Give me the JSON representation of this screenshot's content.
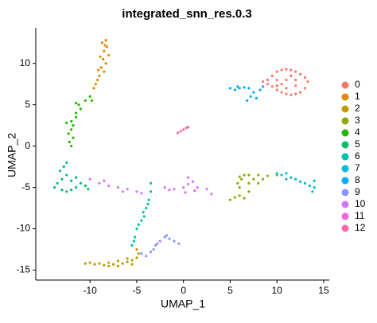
{
  "chart_data": {
    "type": "scatter",
    "title": "integrated_snn_res.0.3",
    "x_label": "UMAP_1",
    "y_label": "UMAP_2",
    "xlim": [
      -15.8,
      15.6
    ],
    "ylim": [
      -16.2,
      14.3
    ],
    "xticks": [
      -10,
      -5,
      0,
      5,
      10,
      15
    ],
    "yticks": [
      -15,
      -10,
      -5,
      0,
      5,
      10
    ],
    "legend": "right",
    "series": [
      {
        "name": "0",
        "color": "#F8766D",
        "x": [
          9,
          9.5,
          10,
          10.5,
          11,
          11.5,
          12,
          12.5,
          13,
          13.3,
          13,
          12.5,
          12,
          11.5,
          11,
          10.5,
          10,
          9.5,
          9,
          10,
          11,
          12,
          11,
          12,
          10.5,
          11.5,
          8.5,
          10
        ],
        "y": [
          8,
          8.5,
          9,
          9.2,
          9.3,
          9.2,
          9,
          8.7,
          8.3,
          7.8,
          7,
          6.5,
          6.3,
          6.2,
          6.3,
          6.5,
          6.8,
          7.2,
          7.5,
          8,
          8,
          8,
          7,
          7.3,
          7.5,
          8.5,
          7.8,
          7.3
        ]
      },
      {
        "name": "1",
        "color": "#E18A00",
        "x": [
          -8.3,
          -8.7,
          -8.2,
          -8.5,
          -8,
          -8.6,
          -8.3,
          -8.8,
          -8.5,
          -9,
          -9.2,
          -9.4,
          -9.6,
          -8.4,
          -8.9,
          -9.1
        ],
        "y": [
          12.8,
          12.5,
          12,
          11.5,
          11,
          10.5,
          10,
          9.5,
          9,
          8.5,
          8,
          7.5,
          7,
          12.2,
          10.8,
          9.2
        ]
      },
      {
        "name": "2",
        "color": "#BE9C00",
        "x": [
          -10.5,
          -10,
          -9.5,
          -9,
          -8.5,
          -8,
          -7.5,
          -7,
          -6.5,
          -6,
          -5.5,
          -5,
          -4.8,
          -5,
          -6,
          -7,
          -8,
          -5.5
        ],
        "y": [
          -14.2,
          -14.1,
          -14.3,
          -14.2,
          -14.4,
          -14.5,
          -14.3,
          -14.5,
          -14.2,
          -14,
          -13.8,
          -13.5,
          -13,
          -12.5,
          -13.6,
          -13.9,
          -14.1,
          -14.3
        ]
      },
      {
        "name": "3",
        "color": "#8CAB00",
        "x": [
          5,
          5.5,
          6,
          6,
          5.8,
          6,
          6.5,
          7,
          8,
          9,
          10,
          7,
          8,
          7,
          6.5,
          8.5,
          6.2,
          7.5
        ],
        "y": [
          -6.5,
          -6.2,
          -6,
          -5,
          -4.5,
          -3.7,
          -3.5,
          -3.5,
          -3.5,
          -3.6,
          -3.5,
          -4.5,
          -4.5,
          -5.5,
          -6.3,
          -4,
          -4,
          -4
        ]
      },
      {
        "name": "4",
        "color": "#24B700",
        "x": [
          -12,
          -12.2,
          -11.8,
          -12.3,
          -12,
          -11.8,
          -12,
          -11.5,
          -11.5,
          -11,
          -11.2,
          -10.5,
          -10,
          -9.8,
          -11.5,
          -12.5
        ],
        "y": [
          0,
          0.5,
          1,
          1.5,
          2,
          2.5,
          3,
          3.5,
          4,
          4.5,
          5,
          5.5,
          6,
          5.5,
          5.2,
          2.8
        ]
      },
      {
        "name": "5",
        "color": "#00BE70",
        "x": [
          -13.5,
          -13.8,
          -13,
          -12.5,
          -12,
          -11.5,
          -11,
          -10.5,
          -12.5,
          -12.8,
          -12.5,
          -13,
          -12,
          -11.5,
          -13.2,
          -10.2
        ],
        "y": [
          -4.5,
          -5,
          -5.3,
          -5.5,
          -5.3,
          -5,
          -4.5,
          -4.8,
          -3.5,
          -2.5,
          -2,
          -4,
          -4.2,
          -3.8,
          -3,
          -5.2
        ]
      },
      {
        "name": "6",
        "color": "#00C1AB",
        "x": [
          -3.5,
          -3.5,
          -3.7,
          -4,
          -4.2,
          -4.5,
          -5,
          -5.2,
          -5.5,
          -4.8,
          -3.8,
          -5.3,
          -4.3
        ],
        "y": [
          -4.5,
          -5.5,
          -6.5,
          -7.5,
          -8.5,
          -9,
          -10,
          -11,
          -12,
          -9.5,
          -7,
          -11.5,
          -8
        ]
      },
      {
        "name": "7",
        "color": "#00BBDA",
        "x": [
          10,
          10.5,
          11,
          11.5,
          12,
          12.5,
          13,
          13.5,
          14,
          14,
          13.8,
          11
        ],
        "y": [
          -3.3,
          -3.5,
          -3.3,
          -3.8,
          -4,
          -4.3,
          -4.5,
          -4.8,
          -5,
          -4.2,
          -5.5,
          -4
        ]
      },
      {
        "name": "8",
        "color": "#00ACFC",
        "x": [
          5,
          5.5,
          6,
          6.5,
          7,
          7.5,
          7.2,
          6.8,
          7.8,
          8.2,
          8.5,
          5.8
        ],
        "y": [
          7,
          6.8,
          7,
          7.1,
          7,
          6.5,
          6,
          5.5,
          5.8,
          6.8,
          7.2,
          7.2
        ]
      },
      {
        "name": "9",
        "color": "#8B93FF",
        "x": [
          -4,
          -3.5,
          -3,
          -2.5,
          -2,
          -1.5,
          -1,
          -0.5,
          -3.2,
          -2.8,
          -4.5,
          -1.8
        ],
        "y": [
          -13.3,
          -12.8,
          -12,
          -11.5,
          -11,
          -11.2,
          -11.5,
          -11.8,
          -12.5,
          -11.8,
          -13,
          -10.8
        ]
      },
      {
        "name": "10",
        "color": "#D575FE",
        "x": [
          -10,
          -9,
          -8,
          -7,
          -6,
          -5,
          -4.5,
          -8.5,
          -6.5,
          -2,
          -1.5,
          -1,
          0,
          0.5,
          1,
          1.5,
          2.5,
          3,
          0.5
        ],
        "y": [
          -4,
          -4.5,
          -4.8,
          -5,
          -5.2,
          -5.5,
          -5.7,
          -4.2,
          -5.5,
          -5,
          -5.3,
          -5.2,
          -5,
          -4.6,
          -4.3,
          -5,
          -5.2,
          -5.8,
          -3.8
        ]
      },
      {
        "name": "11",
        "color": "#F962DD",
        "x": [
          0.2,
          1.2
        ],
        "y": [
          -5.6,
          -5.4
        ]
      },
      {
        "name": "12",
        "color": "#FF65AC",
        "x": [
          -0.6,
          -0.3,
          0,
          0.3,
          0.5
        ],
        "y": [
          1.6,
          1.8,
          2,
          2.2,
          2.3
        ]
      }
    ]
  }
}
